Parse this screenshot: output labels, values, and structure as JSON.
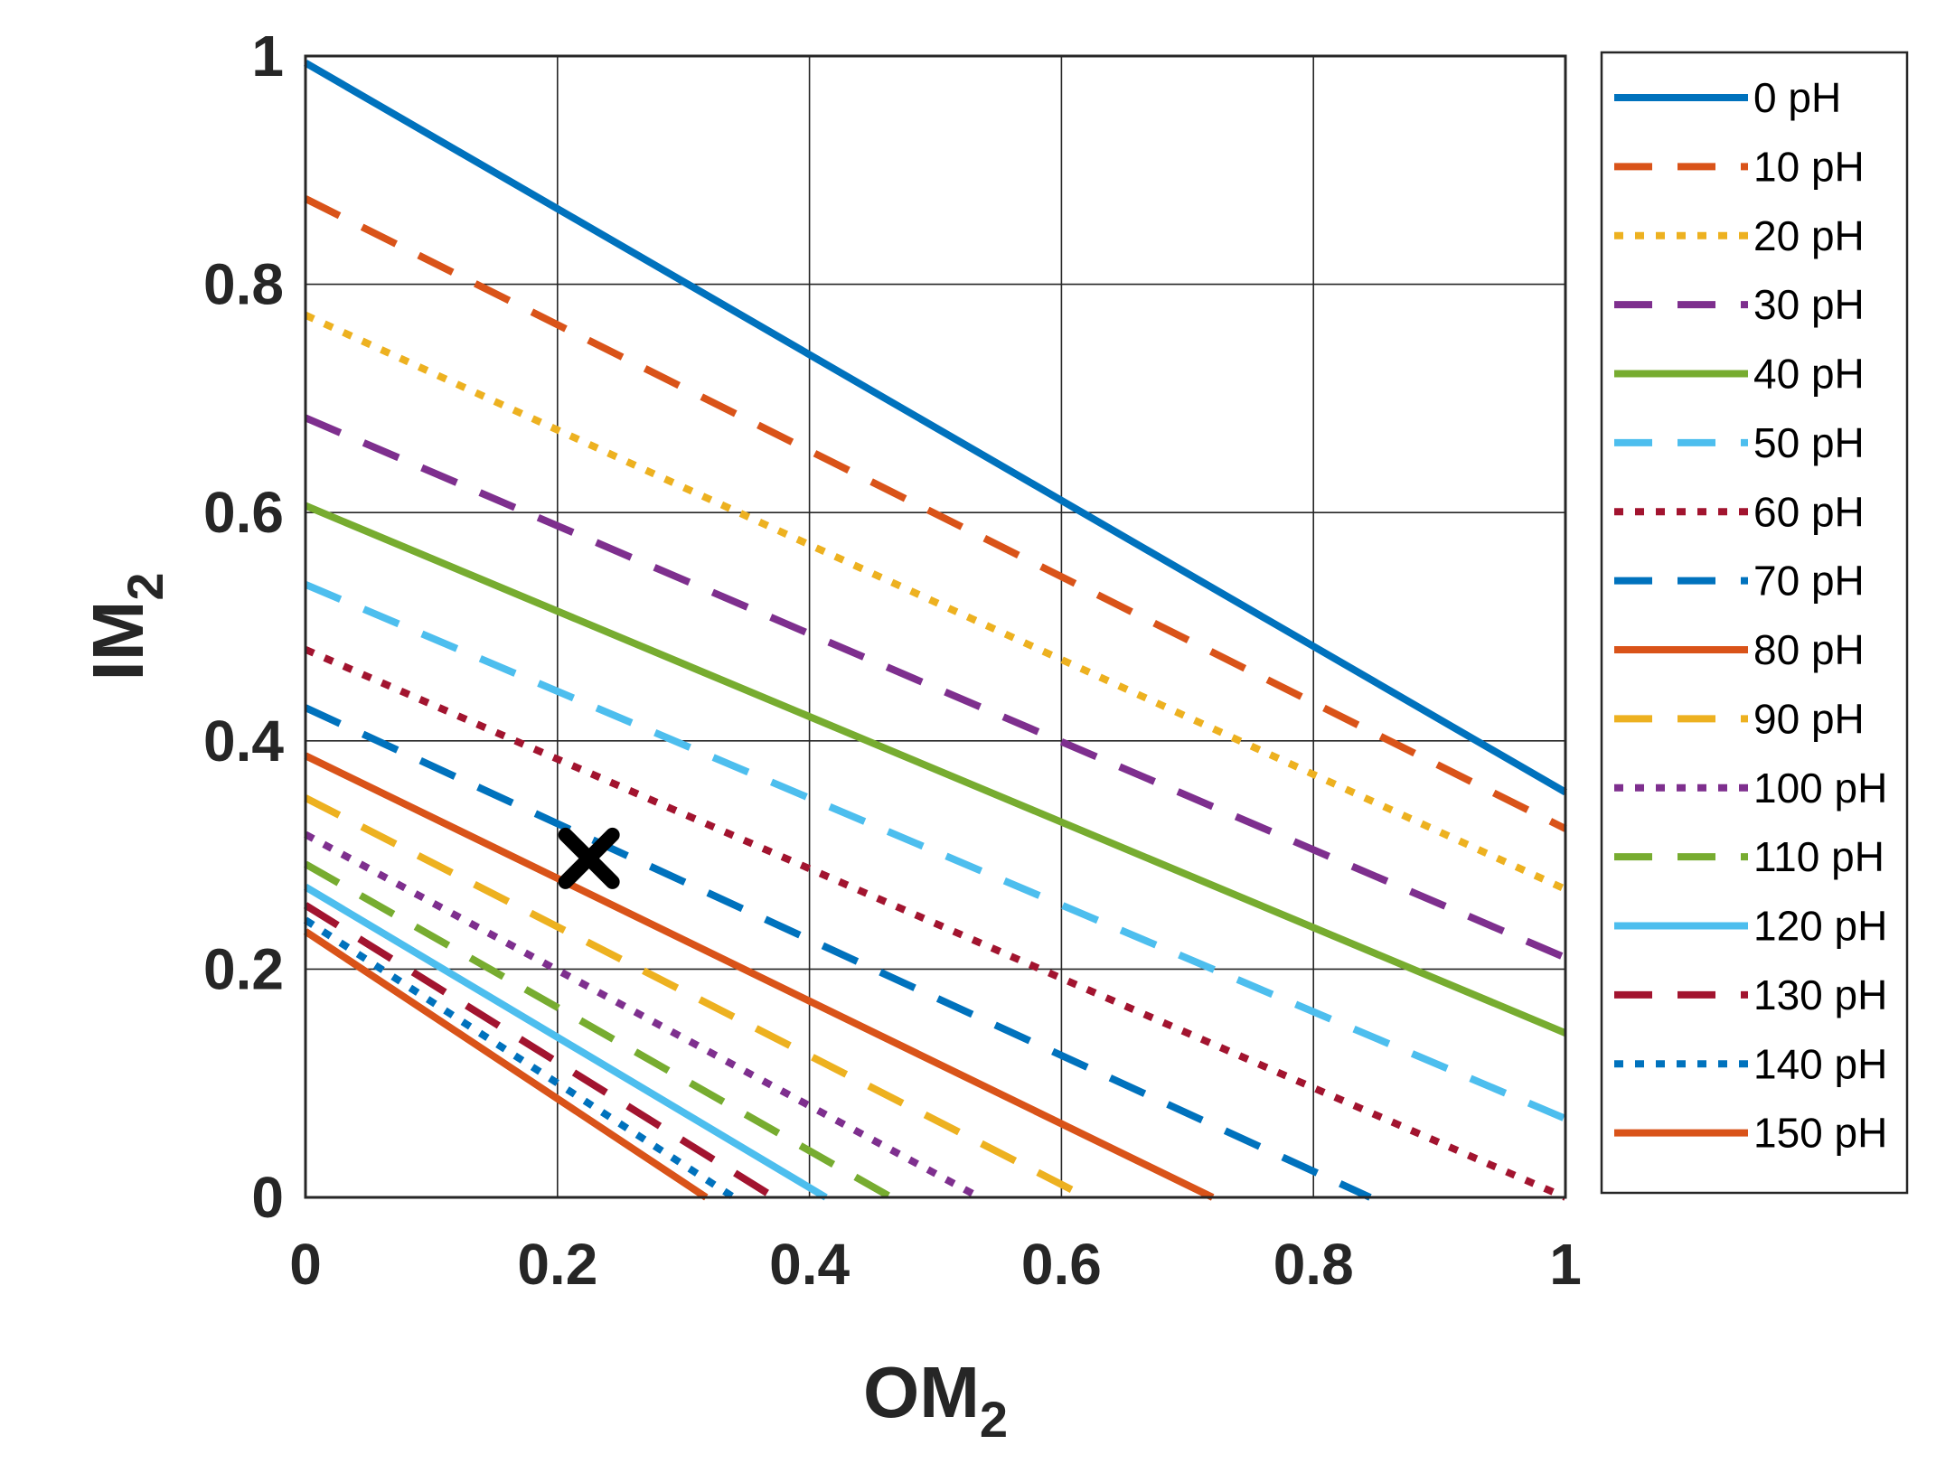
{
  "chart_data": {
    "type": "line",
    "title": "",
    "xlabel": "OM",
    "xlabel_sub": "2",
    "ylabel": "IM",
    "ylabel_sub": "2",
    "xlim": [
      0,
      1
    ],
    "ylim": [
      0,
      1
    ],
    "grid": true,
    "legend_position": "outside-right",
    "x_ticks": [
      0,
      0.2,
      0.4,
      0.6,
      0.8,
      1
    ],
    "y_ticks": [
      0,
      0.2,
      0.4,
      0.6,
      0.8,
      1
    ],
    "x_tick_labels": [
      "0",
      "0.2",
      "0.4",
      "0.6",
      "0.8",
      "1"
    ],
    "y_tick_labels": [
      "0",
      "0.2",
      "0.4",
      "0.6",
      "0.8",
      "1"
    ],
    "series": [
      {
        "name": "0 pH",
        "style": "solid",
        "color": "#0072BD",
        "points": [
          [
            0,
            0.994
          ],
          [
            1,
            0.355
          ]
        ]
      },
      {
        "name": "10 pH",
        "style": "dashed",
        "color": "#D95319",
        "points": [
          [
            0,
            0.875
          ],
          [
            1,
            0.323
          ]
        ]
      },
      {
        "name": "20 pH",
        "style": "dotted",
        "color": "#EDB120",
        "points": [
          [
            0,
            0.773
          ],
          [
            1,
            0.27
          ]
        ]
      },
      {
        "name": "30 pH",
        "style": "dashed",
        "color": "#7E2F8E",
        "points": [
          [
            0,
            0.683
          ],
          [
            1,
            0.21
          ]
        ]
      },
      {
        "name": "40 pH",
        "style": "solid",
        "color": "#77AC30",
        "points": [
          [
            0,
            0.606
          ],
          [
            1,
            0.144
          ]
        ]
      },
      {
        "name": "50 pH",
        "style": "dashed",
        "color": "#4DBEEE",
        "points": [
          [
            0,
            0.537
          ],
          [
            1,
            0.069
          ]
        ]
      },
      {
        "name": "60 pH",
        "style": "dotted",
        "color": "#A2142F",
        "points": [
          [
            0,
            0.48
          ],
          [
            1,
            0.0
          ]
        ]
      },
      {
        "name": "70 pH",
        "style": "dashed",
        "color": "#0072BD",
        "points": [
          [
            0,
            0.429
          ],
          [
            0.845,
            0.0
          ]
        ]
      },
      {
        "name": "80 pH",
        "style": "solid",
        "color": "#D95319",
        "points": [
          [
            0,
            0.387
          ],
          [
            0.72,
            0.0
          ]
        ]
      },
      {
        "name": "90 pH",
        "style": "dashed",
        "color": "#EDB120",
        "points": [
          [
            0,
            0.35
          ],
          [
            0.62,
            0.0
          ]
        ]
      },
      {
        "name": "100 pH",
        "style": "dotted",
        "color": "#7E2F8E",
        "points": [
          [
            0,
            0.318
          ],
          [
            0.535,
            0.0
          ]
        ]
      },
      {
        "name": "110 pH",
        "style": "dashed",
        "color": "#77AC30",
        "points": [
          [
            0,
            0.292
          ],
          [
            0.465,
            0.0
          ]
        ]
      },
      {
        "name": "120 pH",
        "style": "solid",
        "color": "#4DBEEE",
        "points": [
          [
            0,
            0.272
          ],
          [
            0.413,
            0.0
          ]
        ]
      },
      {
        "name": "130 pH",
        "style": "dashed",
        "color": "#A2142F",
        "points": [
          [
            0,
            0.256
          ],
          [
            0.372,
            0.0
          ]
        ]
      },
      {
        "name": "140 pH",
        "style": "dotted",
        "color": "#0072BD",
        "points": [
          [
            0,
            0.243
          ],
          [
            0.34,
            0.0
          ]
        ]
      },
      {
        "name": "150 pH",
        "style": "solid",
        "color": "#D95319",
        "points": [
          [
            0,
            0.233
          ],
          [
            0.318,
            0.0
          ]
        ]
      }
    ],
    "annotations": [
      {
        "type": "marker",
        "symbol": "x",
        "x": 0.225,
        "y": 0.297,
        "color": "#000000"
      }
    ]
  }
}
